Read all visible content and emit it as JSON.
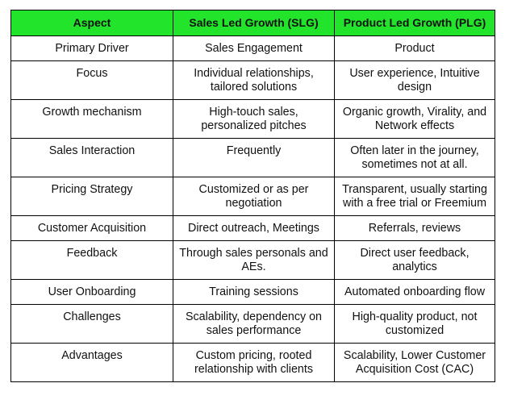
{
  "table": {
    "headers": [
      "Aspect",
      "Sales Led Growth (SLG)",
      "Product Led Growth (PLG)"
    ],
    "rows": [
      {
        "aspect": "Primary Driver",
        "slg": "Sales Engagement",
        "plg": "Product",
        "lines": 1
      },
      {
        "aspect": "Focus",
        "slg": "Individual relationships, tailored solutions",
        "plg": "User experience, Intuitive design",
        "lines": 2
      },
      {
        "aspect": "Growth mechanism",
        "slg": "High-touch sales, personalized pitches",
        "plg": "Organic growth, Virality, and Network effects",
        "lines": 2
      },
      {
        "aspect": "Sales Interaction",
        "slg": "Frequently",
        "plg": "Often later in the journey, sometimes not at all.",
        "lines": 2
      },
      {
        "aspect": "Pricing Strategy",
        "slg": "Customized or as per negotiation",
        "plg": "Transparent, usually starting with a free trial or Freemium",
        "lines": 2
      },
      {
        "aspect": "Customer Acquisition",
        "slg": "Direct outreach, Meetings",
        "plg": "Referrals, reviews",
        "lines": 1
      },
      {
        "aspect": "Feedback",
        "slg": "Through sales personals and AEs.",
        "plg": "Direct user feedback, analytics",
        "lines": 2
      },
      {
        "aspect": "User Onboarding",
        "slg": "Training sessions",
        "plg": "Automated onboarding flow",
        "lines": 1
      },
      {
        "aspect": "Challenges",
        "slg": "Scalability, dependency on sales performance",
        "plg": "High-quality product, not customized",
        "lines": 2
      },
      {
        "aspect": "Advantages",
        "slg": "Custom pricing, rooted relationship with clients",
        "plg": "Scalability, Lower Customer Acquisition Cost (CAC)",
        "lines": 2
      }
    ]
  }
}
